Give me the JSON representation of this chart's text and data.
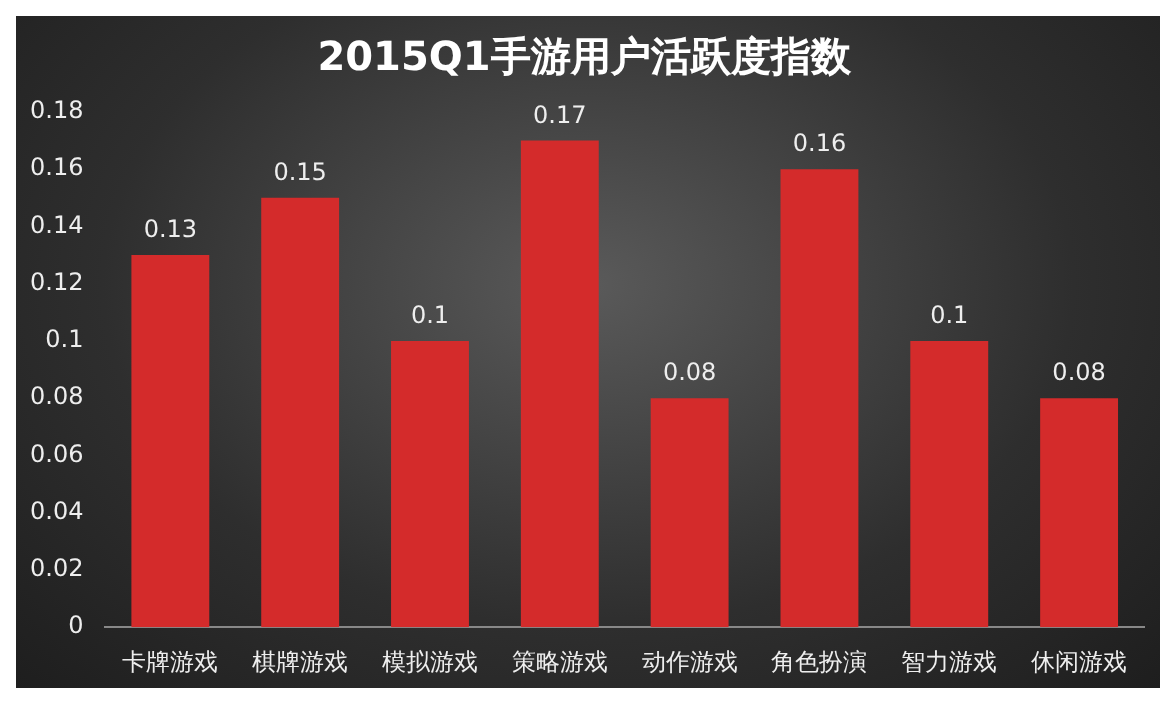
{
  "chart_data": {
    "type": "bar",
    "title": "2015Q1手游用户活跃度指数",
    "categories": [
      "卡牌游戏",
      "棋牌游戏",
      "模拟游戏",
      "策略游戏",
      "动作游戏",
      "角色扮演",
      "智力游戏",
      "休闲游戏"
    ],
    "values": [
      0.13,
      0.15,
      0.1,
      0.17,
      0.08,
      0.16,
      0.1,
      0.08
    ],
    "color": "#d42b2b",
    "ylim": [
      0,
      0.18
    ],
    "yticks": [
      0,
      0.02,
      0.04,
      0.06,
      0.08,
      0.1,
      0.12,
      0.14,
      0.16,
      0.18
    ],
    "data_labels": true,
    "grid": false,
    "legend": false
  }
}
